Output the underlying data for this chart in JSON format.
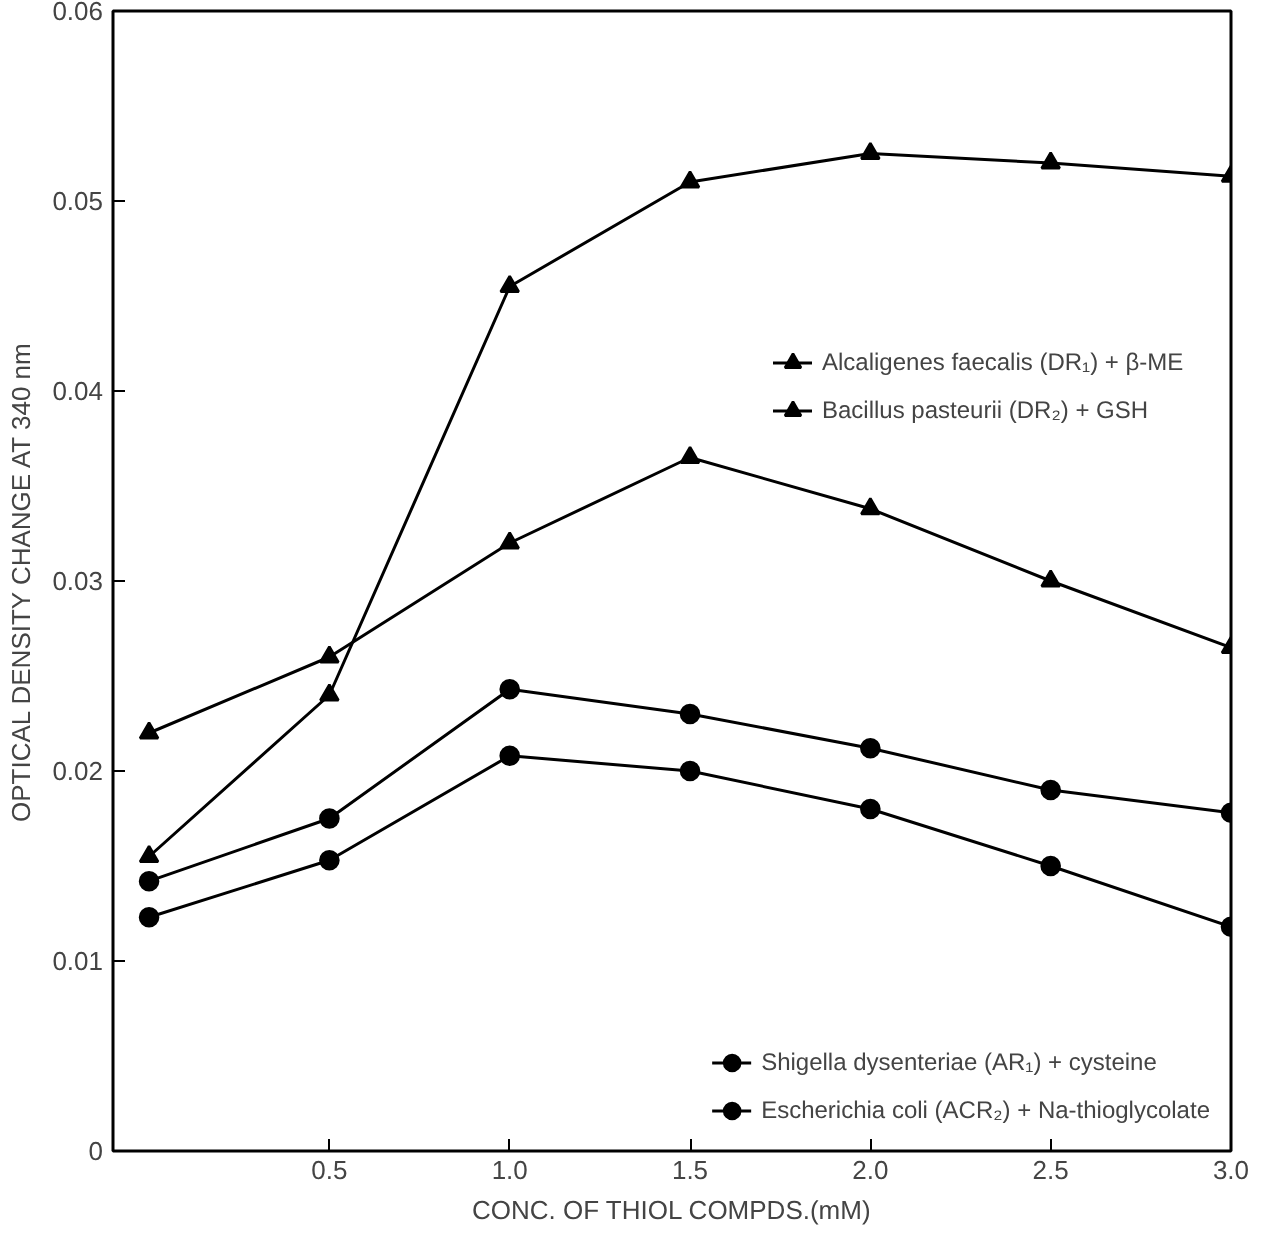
{
  "chart_data": {
    "type": "line",
    "xlabel": "CONC. OF THIOL COMPDS.(mM)",
    "ylabel": "OPTICAL DENSITY CHANGE AT 340 nm",
    "x": [
      0,
      0.5,
      1.0,
      1.5,
      2.0,
      2.5,
      3.0
    ],
    "series": [
      {
        "name": "Alcaligenes faecalis (DR₁) + β-ME",
        "color": "#000000",
        "marker": "triangle",
        "values": [
          0.0155,
          0.024,
          0.0455,
          0.051,
          0.0525,
          0.052,
          0.0513
        ]
      },
      {
        "name": "Bacillus pasteurii (DR₂) + GSH",
        "color": "#000000",
        "marker": "triangle",
        "values": [
          0.022,
          0.026,
          0.032,
          0.0365,
          0.0338,
          0.03,
          0.0265
        ]
      },
      {
        "name": "Shigella dysenteriae (AR₁) + cysteine",
        "color": "#000000",
        "marker": "circle",
        "values": [
          0.0142,
          0.0175,
          0.0243,
          0.023,
          0.0212,
          0.019,
          0.0178
        ]
      },
      {
        "name": "Escherichia coli (ACR₂) + Na-thioglycolate",
        "color": "#000000",
        "marker": "circle",
        "values": [
          0.0123,
          0.0153,
          0.0208,
          0.02,
          0.018,
          0.015,
          0.0118
        ]
      }
    ],
    "xlim": [
      -0.1,
      3.0
    ],
    "ylim": [
      0,
      0.06
    ],
    "xticks": [
      {
        "value": 0.5,
        "label": "0.5"
      },
      {
        "value": 1.0,
        "label": "1.0"
      },
      {
        "value": 1.5,
        "label": "1.5"
      },
      {
        "value": 2.0,
        "label": "2.0"
      },
      {
        "value": 2.5,
        "label": "2.5"
      },
      {
        "value": 3.0,
        "label": "3.0"
      }
    ],
    "yticks": [
      0,
      0.01,
      0.02,
      0.03,
      0.04,
      0.05,
      0.06
    ],
    "grid": false,
    "legend": "right",
    "line_style": "solid"
  }
}
